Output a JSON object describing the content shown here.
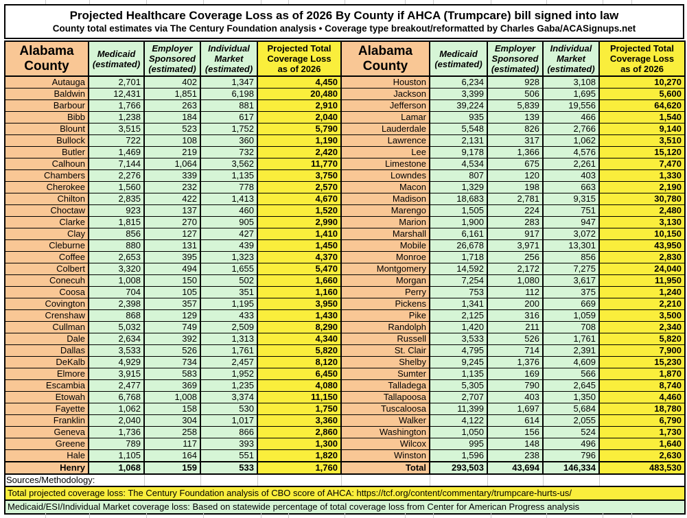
{
  "title": {
    "main": "Projected Healthcare Coverage Loss as of 2026 By County if AHCA (Trumpcare) bill signed into law",
    "sub": "County total estimates via The Century Foundation analysis • Coverage type breakout/reformatted by Charles Gaba/ACASignups.net"
  },
  "columns": [
    {
      "id": "county",
      "label": "Alabama\nCounty"
    },
    {
      "id": "medicaid",
      "label": "Medicaid\n(estimated)"
    },
    {
      "id": "employer",
      "label": "Employer\nSponsored\n(estimated)"
    },
    {
      "id": "individual",
      "label": "Individual\nMarket\n(estimated)"
    },
    {
      "id": "total",
      "label": "Projected Total\nCoverage Loss\nas of 2026"
    }
  ],
  "table": {
    "left_rows": [
      [
        "Autauga",
        "2,701",
        "402",
        "1,347",
        "4,450"
      ],
      [
        "Baldwin",
        "12,431",
        "1,851",
        "6,198",
        "20,480"
      ],
      [
        "Barbour",
        "1,766",
        "263",
        "881",
        "2,910"
      ],
      [
        "Bibb",
        "1,238",
        "184",
        "617",
        "2,040"
      ],
      [
        "Blount",
        "3,515",
        "523",
        "1,752",
        "5,790"
      ],
      [
        "Bullock",
        "722",
        "108",
        "360",
        "1,190"
      ],
      [
        "Butler",
        "1,469",
        "219",
        "732",
        "2,420"
      ],
      [
        "Calhoun",
        "7,144",
        "1,064",
        "3,562",
        "11,770"
      ],
      [
        "Chambers",
        "2,276",
        "339",
        "1,135",
        "3,750"
      ],
      [
        "Cherokee",
        "1,560",
        "232",
        "778",
        "2,570"
      ],
      [
        "Chilton",
        "2,835",
        "422",
        "1,413",
        "4,670"
      ],
      [
        "Choctaw",
        "923",
        "137",
        "460",
        "1,520"
      ],
      [
        "Clarke",
        "1,815",
        "270",
        "905",
        "2,990"
      ],
      [
        "Clay",
        "856",
        "127",
        "427",
        "1,410"
      ],
      [
        "Cleburne",
        "880",
        "131",
        "439",
        "1,450"
      ],
      [
        "Coffee",
        "2,653",
        "395",
        "1,323",
        "4,370"
      ],
      [
        "Colbert",
        "3,320",
        "494",
        "1,655",
        "5,470"
      ],
      [
        "Conecuh",
        "1,008",
        "150",
        "502",
        "1,660"
      ],
      [
        "Coosa",
        "704",
        "105",
        "351",
        "1,160"
      ],
      [
        "Covington",
        "2,398",
        "357",
        "1,195",
        "3,950"
      ],
      [
        "Crenshaw",
        "868",
        "129",
        "433",
        "1,430"
      ],
      [
        "Cullman",
        "5,032",
        "749",
        "2,509",
        "8,290"
      ],
      [
        "Dale",
        "2,634",
        "392",
        "1,313",
        "4,340"
      ],
      [
        "Dallas",
        "3,533",
        "526",
        "1,761",
        "5,820"
      ],
      [
        "DeKalb",
        "4,929",
        "734",
        "2,457",
        "8,120"
      ],
      [
        "Elmore",
        "3,915",
        "583",
        "1,952",
        "6,450"
      ],
      [
        "Escambia",
        "2,477",
        "369",
        "1,235",
        "4,080"
      ],
      [
        "Etowah",
        "6,768",
        "1,008",
        "3,374",
        "11,150"
      ],
      [
        "Fayette",
        "1,062",
        "158",
        "530",
        "1,750"
      ],
      [
        "Franklin",
        "2,040",
        "304",
        "1,017",
        "3,360"
      ],
      [
        "Geneva",
        "1,736",
        "258",
        "866",
        "2,860"
      ],
      [
        "Greene",
        "789",
        "117",
        "393",
        "1,300"
      ],
      [
        "Hale",
        "1,105",
        "164",
        "551",
        "1,820"
      ],
      [
        "Henry",
        "1,068",
        "159",
        "533",
        "1,760"
      ]
    ],
    "right_rows": [
      [
        "Houston",
        "6,234",
        "928",
        "3,108",
        "10,270"
      ],
      [
        "Jackson",
        "3,399",
        "506",
        "1,695",
        "5,600"
      ],
      [
        "Jefferson",
        "39,224",
        "5,839",
        "19,556",
        "64,620"
      ],
      [
        "Lamar",
        "935",
        "139",
        "466",
        "1,540"
      ],
      [
        "Lauderdale",
        "5,548",
        "826",
        "2,766",
        "9,140"
      ],
      [
        "Lawrence",
        "2,131",
        "317",
        "1,062",
        "3,510"
      ],
      [
        "Lee",
        "9,178",
        "1,366",
        "4,576",
        "15,120"
      ],
      [
        "Limestone",
        "4,534",
        "675",
        "2,261",
        "7,470"
      ],
      [
        "Lowndes",
        "807",
        "120",
        "403",
        "1,330"
      ],
      [
        "Macon",
        "1,329",
        "198",
        "663",
        "2,190"
      ],
      [
        "Madison",
        "18,683",
        "2,781",
        "9,315",
        "30,780"
      ],
      [
        "Marengo",
        "1,505",
        "224",
        "751",
        "2,480"
      ],
      [
        "Marion",
        "1,900",
        "283",
        "947",
        "3,130"
      ],
      [
        "Marshall",
        "6,161",
        "917",
        "3,072",
        "10,150"
      ],
      [
        "Mobile",
        "26,678",
        "3,971",
        "13,301",
        "43,950"
      ],
      [
        "Monroe",
        "1,718",
        "256",
        "856",
        "2,830"
      ],
      [
        "Montgomery",
        "14,592",
        "2,172",
        "7,275",
        "24,040"
      ],
      [
        "Morgan",
        "7,254",
        "1,080",
        "3,617",
        "11,950"
      ],
      [
        "Perry",
        "753",
        "112",
        "375",
        "1,240"
      ],
      [
        "Pickens",
        "1,341",
        "200",
        "669",
        "2,210"
      ],
      [
        "Pike",
        "2,125",
        "316",
        "1,059",
        "3,500"
      ],
      [
        "Randolph",
        "1,420",
        "211",
        "708",
        "2,340"
      ],
      [
        "Russell",
        "3,533",
        "526",
        "1,761",
        "5,820"
      ],
      [
        "St. Clair",
        "4,795",
        "714",
        "2,391",
        "7,900"
      ],
      [
        "Shelby",
        "9,245",
        "1,376",
        "4,609",
        "15,230"
      ],
      [
        "Sumter",
        "1,135",
        "169",
        "566",
        "1,870"
      ],
      [
        "Talladega",
        "5,305",
        "790",
        "2,645",
        "8,740"
      ],
      [
        "Tallapoosa",
        "2,707",
        "403",
        "1,350",
        "4,460"
      ],
      [
        "Tuscaloosa",
        "11,399",
        "1,697",
        "5,684",
        "18,780"
      ],
      [
        "Walker",
        "4,122",
        "614",
        "2,055",
        "6,790"
      ],
      [
        "Washington",
        "1,050",
        "156",
        "524",
        "1,730"
      ],
      [
        "Wilcox",
        "995",
        "148",
        "496",
        "1,640"
      ],
      [
        "Winston",
        "1,596",
        "238",
        "796",
        "2,630"
      ]
    ],
    "total_row": [
      "Total",
      "293,503",
      "43,694",
      "146,334",
      "483,530"
    ]
  },
  "footer": {
    "sources_label": "Sources/Methodology:",
    "total_note": "Total projected coverage loss: The Century Foundation analysis of CBO score of AHCA: https://tcf.org/content/commentary/trumpcare-hurts-us/",
    "breakout_note": "Medicaid/ESI/Individual Market coverage loss: Based on statewide percentage of total coverage loss from Center for American Progress analysis"
  },
  "colors": {
    "county_bg": "#f9c795",
    "data_bg": "#d6f5d6",
    "total_bg": "#faee3c",
    "border": "#000000"
  }
}
